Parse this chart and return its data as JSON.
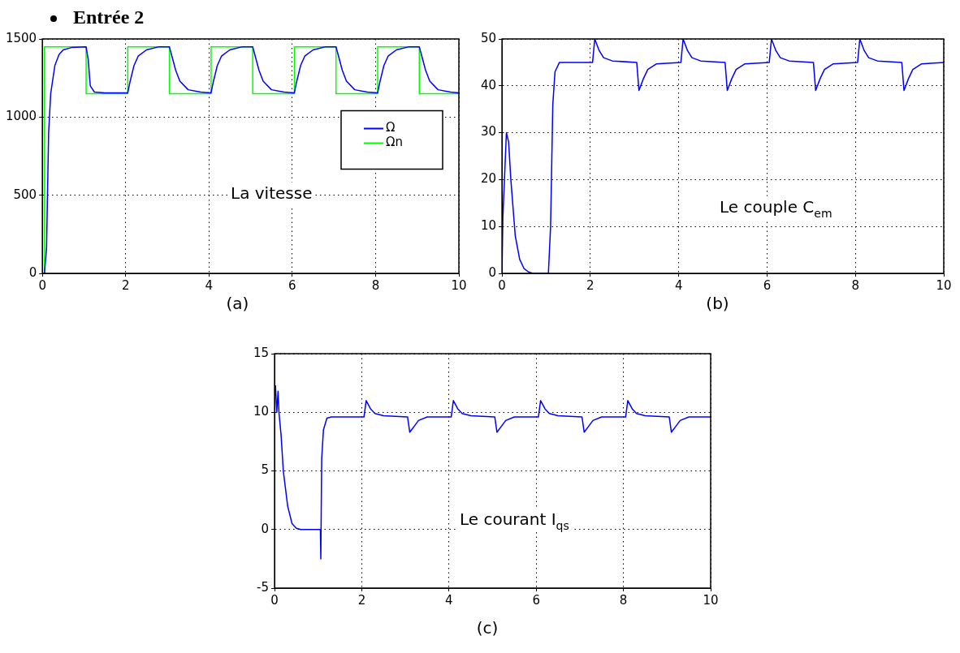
{
  "chart_data": [
    {
      "type": "line",
      "title": "Entrée 2",
      "annotations": [
        "La vitesse",
        "(a)"
      ],
      "xlim": [
        0,
        10
      ],
      "xticks": [
        0,
        2,
        4,
        6,
        8,
        10
      ],
      "ylim": [
        0,
        1500
      ],
      "yticks": [
        0,
        500,
        1000,
        1500
      ],
      "grid": true,
      "legend": "right",
      "series": [
        {
          "name": "Ω",
          "color": "#0000ff",
          "x": [
            0,
            0.05,
            0.1,
            0.15,
            0.2,
            0.3,
            0.4,
            0.5,
            0.7,
            1.05,
            1.1,
            1.15,
            1.25,
            1.5,
            2.05,
            2.1,
            2.2,
            2.3,
            2.5,
            2.8,
            3.05,
            3.1,
            3.2,
            3.3,
            3.5,
            3.8,
            4.05,
            4.1,
            4.2,
            4.3,
            4.5,
            4.8,
            5.05,
            5.1,
            5.2,
            5.3,
            5.5,
            5.8,
            6.05,
            6.1,
            6.2,
            6.3,
            6.5,
            6.8,
            7.05,
            7.1,
            7.2,
            7.3,
            7.5,
            7.8,
            8.05,
            8.1,
            8.2,
            8.3,
            8.5,
            8.8,
            9.05,
            9.1,
            9.2,
            9.3,
            9.5,
            9.8,
            10
          ],
          "values": [
            0,
            0,
            160,
            900,
            1150,
            1330,
            1400,
            1430,
            1445,
            1450,
            1370,
            1200,
            1160,
            1155,
            1155,
            1220,
            1330,
            1390,
            1430,
            1450,
            1450,
            1400,
            1300,
            1230,
            1175,
            1160,
            1155,
            1220,
            1330,
            1390,
            1430,
            1450,
            1450,
            1400,
            1300,
            1230,
            1175,
            1160,
            1155,
            1220,
            1330,
            1390,
            1430,
            1450,
            1450,
            1400,
            1300,
            1230,
            1175,
            1160,
            1155,
            1220,
            1330,
            1390,
            1430,
            1450,
            1450,
            1400,
            1300,
            1230,
            1175,
            1160,
            1155
          ]
        },
        {
          "name": "Ωn",
          "color": "#00ff00",
          "x": [
            0,
            0.05,
            0.05,
            1.05,
            1.05,
            2.05,
            2.05,
            3.05,
            3.05,
            4.05,
            4.05,
            5.05,
            5.05,
            6.05,
            6.05,
            7.05,
            7.05,
            8.05,
            8.05,
            9.05,
            9.05,
            10
          ],
          "values": [
            0,
            0,
            1450,
            1450,
            1150,
            1150,
            1450,
            1450,
            1150,
            1150,
            1450,
            1450,
            1150,
            1150,
            1450,
            1450,
            1150,
            1150,
            1450,
            1450,
            1150,
            1150
          ]
        }
      ]
    },
    {
      "type": "line",
      "annotations": [
        "Le couple C$_{em}$",
        "(b)"
      ],
      "xlim": [
        0,
        10
      ],
      "xticks": [
        0,
        2,
        4,
        6,
        8,
        10
      ],
      "ylim": [
        0,
        50
      ],
      "yticks": [
        0,
        10,
        20,
        30,
        40,
        50
      ],
      "grid": true,
      "series": [
        {
          "color": "#0000ff",
          "x": [
            0,
            0.02,
            0.1,
            0.15,
            0.2,
            0.3,
            0.4,
            0.5,
            0.6,
            0.7,
            1.05,
            1.1,
            1.15,
            1.2,
            1.3,
            2.05,
            2.1,
            2.2,
            2.3,
            2.5,
            3.05,
            3.1,
            3.2,
            3.3,
            3.5,
            4.05,
            4.1,
            4.2,
            4.3,
            4.5,
            5.05,
            5.1,
            5.2,
            5.3,
            5.5,
            6.05,
            6.1,
            6.2,
            6.3,
            6.5,
            7.05,
            7.1,
            7.2,
            7.3,
            7.5,
            8.05,
            8.1,
            8.2,
            8.3,
            8.5,
            9.05,
            9.1,
            9.2,
            9.3,
            9.5,
            10
          ],
          "values": [
            0,
            12,
            30,
            28,
            20,
            8,
            3,
            1,
            0.3,
            0,
            0,
            10,
            36,
            43,
            45,
            45,
            50,
            47.5,
            46,
            45.3,
            45,
            39,
            41.5,
            43.5,
            44.7,
            45,
            50,
            47.5,
            46,
            45.3,
            45,
            39,
            41.5,
            43.5,
            44.7,
            45,
            50,
            47.5,
            46,
            45.3,
            45,
            39,
            41.5,
            43.5,
            44.7,
            45,
            50,
            47.5,
            46,
            45.3,
            45,
            39,
            41.5,
            43.5,
            44.7,
            45
          ]
        }
      ]
    },
    {
      "type": "line",
      "annotations": [
        "Le courant I$_{qs}$",
        "(c)"
      ],
      "xlim": [
        0,
        10
      ],
      "xticks": [
        0,
        2,
        4,
        6,
        8,
        10
      ],
      "ylim": [
        -5,
        15
      ],
      "yticks": [
        -5,
        0,
        5,
        10,
        15
      ],
      "grid": true,
      "series": [
        {
          "color": "#0000ff",
          "x": [
            0.02,
            0.05,
            0.08,
            0.1,
            0.15,
            0.2,
            0.3,
            0.4,
            0.5,
            0.6,
            1.05,
            1.06,
            1.08,
            1.12,
            1.2,
            1.3,
            2.05,
            2.1,
            2.2,
            2.3,
            2.5,
            3.05,
            3.1,
            3.2,
            3.3,
            3.5,
            4.05,
            4.1,
            4.2,
            4.3,
            4.5,
            5.05,
            5.1,
            5.2,
            5.3,
            5.5,
            6.05,
            6.1,
            6.2,
            6.3,
            6.5,
            7.05,
            7.1,
            7.2,
            7.3,
            7.5,
            8.05,
            8.1,
            8.2,
            8.3,
            8.5,
            9.05,
            9.1,
            9.2,
            9.3,
            9.5,
            10
          ],
          "values": [
            12.3,
            10,
            11.8,
            10,
            8,
            5,
            2,
            0.5,
            0.1,
            0,
            0,
            -2.5,
            6,
            8.5,
            9.5,
            9.6,
            9.6,
            11,
            10.3,
            9.9,
            9.7,
            9.6,
            8.3,
            8.8,
            9.3,
            9.6,
            9.6,
            11,
            10.3,
            9.9,
            9.7,
            9.6,
            8.3,
            8.8,
            9.3,
            9.6,
            9.6,
            11,
            10.3,
            9.9,
            9.7,
            9.6,
            8.3,
            8.8,
            9.3,
            9.6,
            9.6,
            11,
            10.3,
            9.9,
            9.7,
            9.6,
            8.3,
            8.8,
            9.3,
            9.6,
            9.6
          ]
        }
      ]
    }
  ]
}
